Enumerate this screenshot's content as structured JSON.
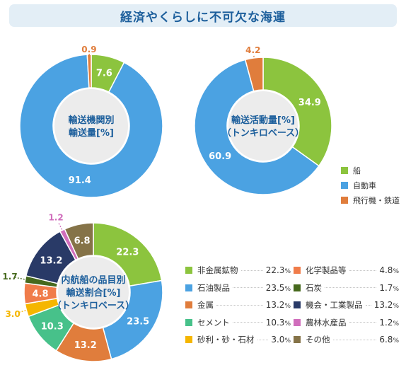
{
  "title": "経済やくらしに不可欠な海運",
  "colors": {
    "ship": "#8cc43e",
    "car": "#4ba2e2",
    "air": "#e07d3c",
    "ring_center": "#ececec",
    "center_text": "#1d5f9c"
  },
  "legend_top": [
    {
      "label": "船",
      "color": "#8cc43e"
    },
    {
      "label": "自動車",
      "color": "#4ba2e2"
    },
    {
      "label": "飛行機・鉄道",
      "color": "#e07d3c"
    }
  ],
  "legend_bottom": [
    {
      "label": "非金属鉱物",
      "value": "22.3",
      "color": "#8cc43e"
    },
    {
      "label": "化学製品等",
      "value": "4.8",
      "color": "#f07c4a"
    },
    {
      "label": "石油製品",
      "value": "23.5",
      "color": "#4ba2e2"
    },
    {
      "label": "石炭",
      "value": "1.7",
      "color": "#46691d"
    },
    {
      "label": "金属",
      "value": "13.2",
      "color": "#e07d3c"
    },
    {
      "label": "機会・工業製品",
      "value": "13.2",
      "color": "#293a67"
    },
    {
      "label": "セメント",
      "value": "10.3",
      "color": "#47c18a"
    },
    {
      "label": "農林水産品",
      "value": "1.2",
      "color": "#d06ebc"
    },
    {
      "label": "砂利・砂・石材",
      "value": "3.0",
      "color": "#f5b600"
    },
    {
      "label": "その他",
      "value": "6.8",
      "color": "#857348"
    }
  ],
  "percent_sign": "%",
  "chart_data": [
    {
      "type": "pie",
      "title": "輸送機関別\n輸送量[%]",
      "slices": [
        {
          "name": "船",
          "value": 7.6,
          "color": "#8cc43e"
        },
        {
          "name": "自動車",
          "value": 91.4,
          "color": "#4ba2e2"
        },
        {
          "name": "飛行機・鉄道",
          "value": 0.9,
          "color": "#e07d3c"
        }
      ]
    },
    {
      "type": "pie",
      "title": "輸送活動量[%]\n（トンキロベース）",
      "slices": [
        {
          "name": "船",
          "value": 34.9,
          "color": "#8cc43e"
        },
        {
          "name": "自動車",
          "value": 60.9,
          "color": "#4ba2e2"
        },
        {
          "name": "飛行機・鉄道",
          "value": 4.2,
          "color": "#e07d3c"
        }
      ]
    },
    {
      "type": "pie",
      "title": "内航船の品目別\n輸送割合[%]\n（トンキロベース）",
      "slices": [
        {
          "name": "非金属鉱物",
          "value": 22.3,
          "color": "#8cc43e"
        },
        {
          "name": "石油製品",
          "value": 23.5,
          "color": "#4ba2e2"
        },
        {
          "name": "金属",
          "value": 13.2,
          "color": "#e07d3c"
        },
        {
          "name": "セメント",
          "value": 10.3,
          "color": "#47c18a"
        },
        {
          "name": "砂利・砂・石材",
          "value": 3.0,
          "color": "#f5b600"
        },
        {
          "name": "化学製品等",
          "value": 4.8,
          "color": "#f07c4a"
        },
        {
          "name": "石炭",
          "value": 1.7,
          "color": "#46691d"
        },
        {
          "name": "機会・工業製品",
          "value": 13.2,
          "color": "#293a67"
        },
        {
          "name": "農林水産品",
          "value": 1.2,
          "color": "#d06ebc"
        },
        {
          "name": "その他",
          "value": 6.8,
          "color": "#857348"
        }
      ]
    }
  ]
}
